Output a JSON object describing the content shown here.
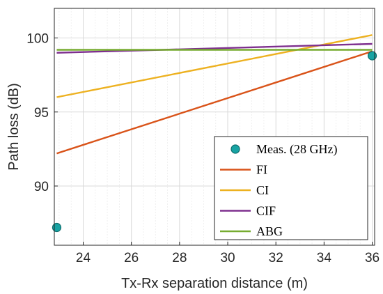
{
  "chart_data": {
    "type": "line",
    "title": "",
    "xlabel": "Tx-Rx separation distance (m)",
    "ylabel": "Path loss (dB)",
    "xlim": [
      22.8,
      36.1
    ],
    "ylim": [
      86,
      102
    ],
    "xticks": [
      24,
      26,
      28,
      30,
      32,
      34,
      36
    ],
    "yticks": [
      90,
      95,
      100
    ],
    "grid": true,
    "minor_grid": true,
    "legend_position": "bottom-right",
    "series": [
      {
        "name": "Meas. (28 GHz)",
        "kind": "scatter",
        "color": "#17a3a3",
        "x": [
          22.9,
          36.0
        ],
        "y": [
          87.2,
          98.8
        ]
      },
      {
        "name": "FI",
        "kind": "line",
        "color": "#d95319",
        "x": [
          22.9,
          36.0
        ],
        "y": [
          92.2,
          99.1
        ]
      },
      {
        "name": "CI",
        "kind": "line",
        "color": "#edb120",
        "x": [
          22.9,
          36.0
        ],
        "y": [
          96.0,
          100.2
        ]
      },
      {
        "name": "CIF",
        "kind": "line",
        "color": "#7e2f8e",
        "x": [
          22.9,
          36.0
        ],
        "y": [
          99.0,
          99.6
        ]
      },
      {
        "name": "ABG",
        "kind": "line",
        "color": "#77ac30",
        "x": [
          22.9,
          36.0
        ],
        "y": [
          99.2,
          99.2
        ]
      }
    ]
  }
}
